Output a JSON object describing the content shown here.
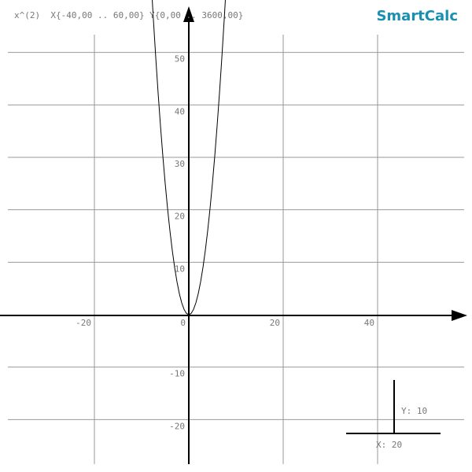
{
  "chart_data": {
    "type": "line",
    "title": "SmartCalc",
    "subtitle": "x^(2)  X{-40,00 .. 60,00} Y{0,00 .. 3600,00}",
    "x": [
      -8,
      -7.5,
      -7,
      -6.5,
      -6,
      -5.5,
      -5,
      -4.5,
      -4,
      -3.5,
      -3,
      -2.5,
      -2,
      -1.5,
      -1,
      -0.5,
      0,
      0.5,
      1,
      1.5,
      2,
      2.5,
      3,
      3.5,
      4,
      4.5,
      5,
      5.5,
      6,
      6.5,
      7,
      7.5,
      8
    ],
    "series": [
      {
        "name": "x^(2)",
        "color": "#000000",
        "values": [
          64,
          56.25,
          49,
          42.25,
          36,
          30.25,
          25,
          20.25,
          16,
          12.25,
          9,
          6.25,
          4,
          2.25,
          1,
          0.25,
          0,
          0.25,
          1,
          2.25,
          4,
          6.25,
          9,
          12.25,
          16,
          20.25,
          25,
          30.25,
          36,
          42.25,
          49,
          56.25,
          64
        ]
      }
    ],
    "xlim": [
      -40,
      60
    ],
    "ylim": [
      -30,
      60
    ],
    "xticks": [
      -20,
      0,
      20,
      40
    ],
    "yticks": [
      -20,
      -10,
      10,
      20,
      30,
      40,
      50
    ],
    "grid": true,
    "scale_y_label": "Y: 10",
    "scale_x_label": "X: 20"
  }
}
